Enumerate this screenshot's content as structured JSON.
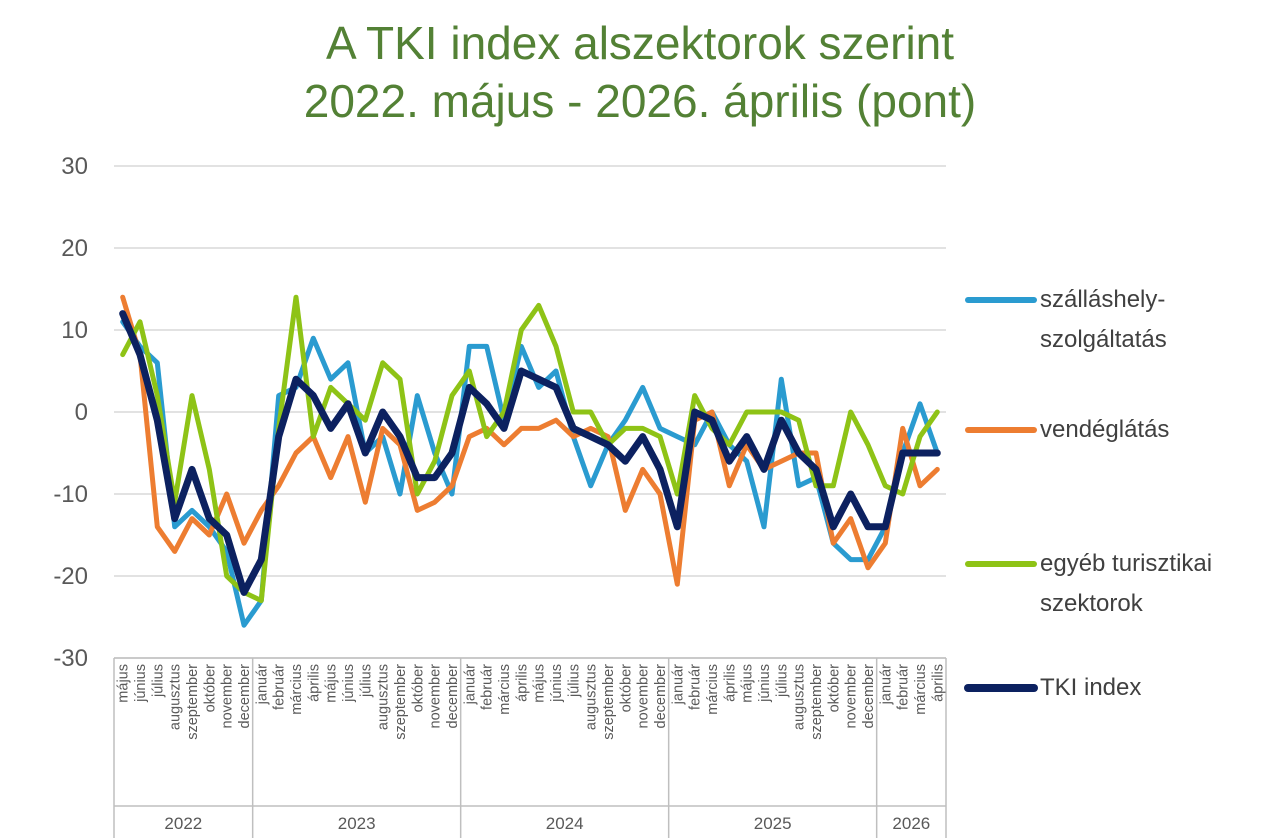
{
  "chart_data": {
    "type": "line",
    "title": "A TKI index alszektorok szerint",
    "subtitle": "2022. május - 2026. április (pont)",
    "ylim": [
      -30,
      30
    ],
    "yticks": [
      "30",
      "20",
      "10",
      "0",
      "-10",
      "-20",
      "-30"
    ],
    "ytick_values": [
      30,
      20,
      10,
      0,
      -10,
      -20,
      -30
    ],
    "grid": true,
    "legend_position": "right",
    "x": [
      "május",
      "június",
      "július",
      "augusztus",
      "szeptember",
      "október",
      "november",
      "december",
      "január",
      "február",
      "március",
      "április",
      "május",
      "június",
      "július",
      "augusztus",
      "szeptember",
      "október",
      "november",
      "december",
      "január",
      "február",
      "március",
      "április",
      "május",
      "június",
      "július",
      "augusztus",
      "szeptember",
      "október",
      "november",
      "december",
      "január",
      "február",
      "március",
      "április",
      "május",
      "június",
      "július",
      "augusztus",
      "szeptember",
      "október",
      "november",
      "december",
      "január",
      "február",
      "március",
      "április"
    ],
    "years": [
      {
        "label": "2022",
        "count": 8
      },
      {
        "label": "2023",
        "count": 12
      },
      {
        "label": "2024",
        "count": 12
      },
      {
        "label": "2025",
        "count": 12
      },
      {
        "label": "2026",
        "count": 4
      }
    ],
    "series": [
      {
        "name": "szálláshely-szolgáltatás",
        "legend_lines": [
          "szálláshely-",
          "szolgáltatás"
        ],
        "color": "#2a9bd0",
        "values": [
          11,
          8,
          6,
          -14,
          -12,
          -14,
          -17,
          -26,
          -23,
          2,
          3,
          9,
          4,
          6,
          -5,
          -3,
          -10,
          2,
          -5,
          -10,
          8,
          8,
          -1,
          8,
          3,
          5,
          -3,
          -9,
          -4,
          -1,
          3,
          -2,
          -3,
          -4,
          0,
          -4,
          -6,
          -14,
          4,
          -9,
          -8,
          -16,
          -18,
          -18,
          -14,
          -5,
          1,
          -5
        ]
      },
      {
        "name": "vendéglátás",
        "legend_lines": [
          "vendéglátás"
        ],
        "color": "#ed7d31",
        "values": [
          14,
          7,
          -14,
          -17,
          -13,
          -15,
          -10,
          -16,
          -12,
          -9,
          -5,
          -3,
          -8,
          -3,
          -11,
          -2,
          -4,
          -12,
          -11,
          -9,
          -3,
          -2,
          -4,
          -2,
          -2,
          -1,
          -3,
          -2,
          -3,
          -12,
          -7,
          -10,
          -21,
          -1,
          0,
          -9,
          -4,
          -7,
          -6,
          -5,
          -5,
          -16,
          -13,
          -19,
          -16,
          -2,
          -9,
          -7
        ]
      },
      {
        "name": "egyéb turisztikai szektorok",
        "legend_lines": [
          "egyéb turisztikai",
          "szektorok"
        ],
        "color": "#8ec316",
        "values": [
          7,
          11,
          2,
          -11,
          2,
          -7,
          -20,
          -22,
          -23,
          -2,
          14,
          -3,
          3,
          1,
          -1,
          6,
          4,
          -10,
          -6,
          2,
          5,
          -3,
          0,
          10,
          13,
          8,
          0,
          0,
          -4,
          -2,
          -2,
          -3,
          -10,
          2,
          -2,
          -4,
          0,
          0,
          0,
          -1,
          -9,
          -9,
          0,
          -4,
          -9,
          -10,
          -3,
          0
        ]
      },
      {
        "name": "TKI index",
        "legend_lines": [
          "TKI index"
        ],
        "color": "#0c2160",
        "values": [
          12,
          7,
          -1,
          -13,
          -7,
          -13,
          -15,
          -22,
          -18,
          -3,
          4,
          2,
          -2,
          1,
          -5,
          0,
          -3,
          -8,
          -8,
          -5,
          3,
          1,
          -2,
          5,
          4,
          3,
          -2,
          -3,
          -4,
          -6,
          -3,
          -7,
          -14,
          0,
          -1,
          -6,
          -3,
          -7,
          -1,
          -5,
          -7,
          -14,
          -10,
          -14,
          -14,
          -5,
          -5,
          -5
        ]
      }
    ]
  }
}
